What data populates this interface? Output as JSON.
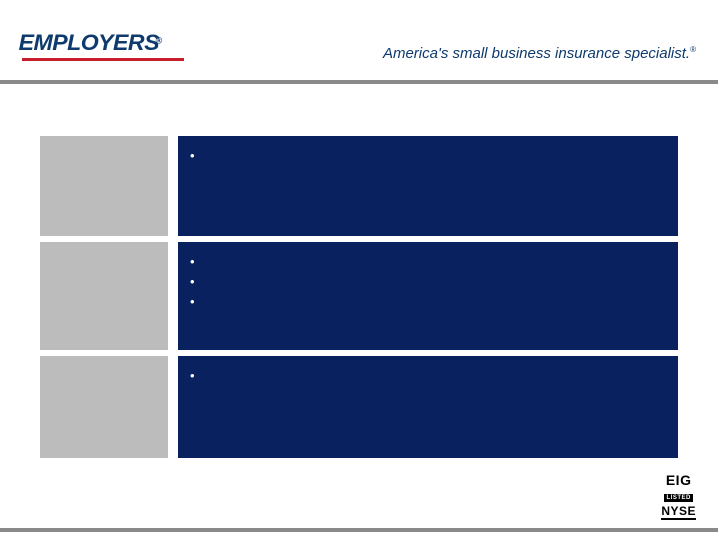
{
  "header": {
    "logo_text": "EMPLOYERS",
    "logo_reg": "®",
    "tagline": "America's small business insurance specialist.",
    "tagline_reg": "®",
    "underline_color": "#c81e2b",
    "logo_color": "#0e3a6e"
  },
  "divider": {
    "color": "#8a8a8a"
  },
  "rows": [
    {
      "left_bg": "#bcbcbc",
      "right_bg": "#0a2160",
      "bullets": [
        ""
      ]
    },
    {
      "left_bg": "#bcbcbc",
      "right_bg": "#0a2160",
      "bullets": [
        "",
        "",
        ""
      ]
    },
    {
      "left_bg": "#bcbcbc",
      "right_bg": "#0a2160",
      "bullets": [
        ""
      ]
    }
  ],
  "footer": {
    "line1": "EIG",
    "line2": "LISTED",
    "line3": "NYSE"
  },
  "colors": {
    "page_bg": "#ffffff",
    "text_light": "#ffffff"
  }
}
